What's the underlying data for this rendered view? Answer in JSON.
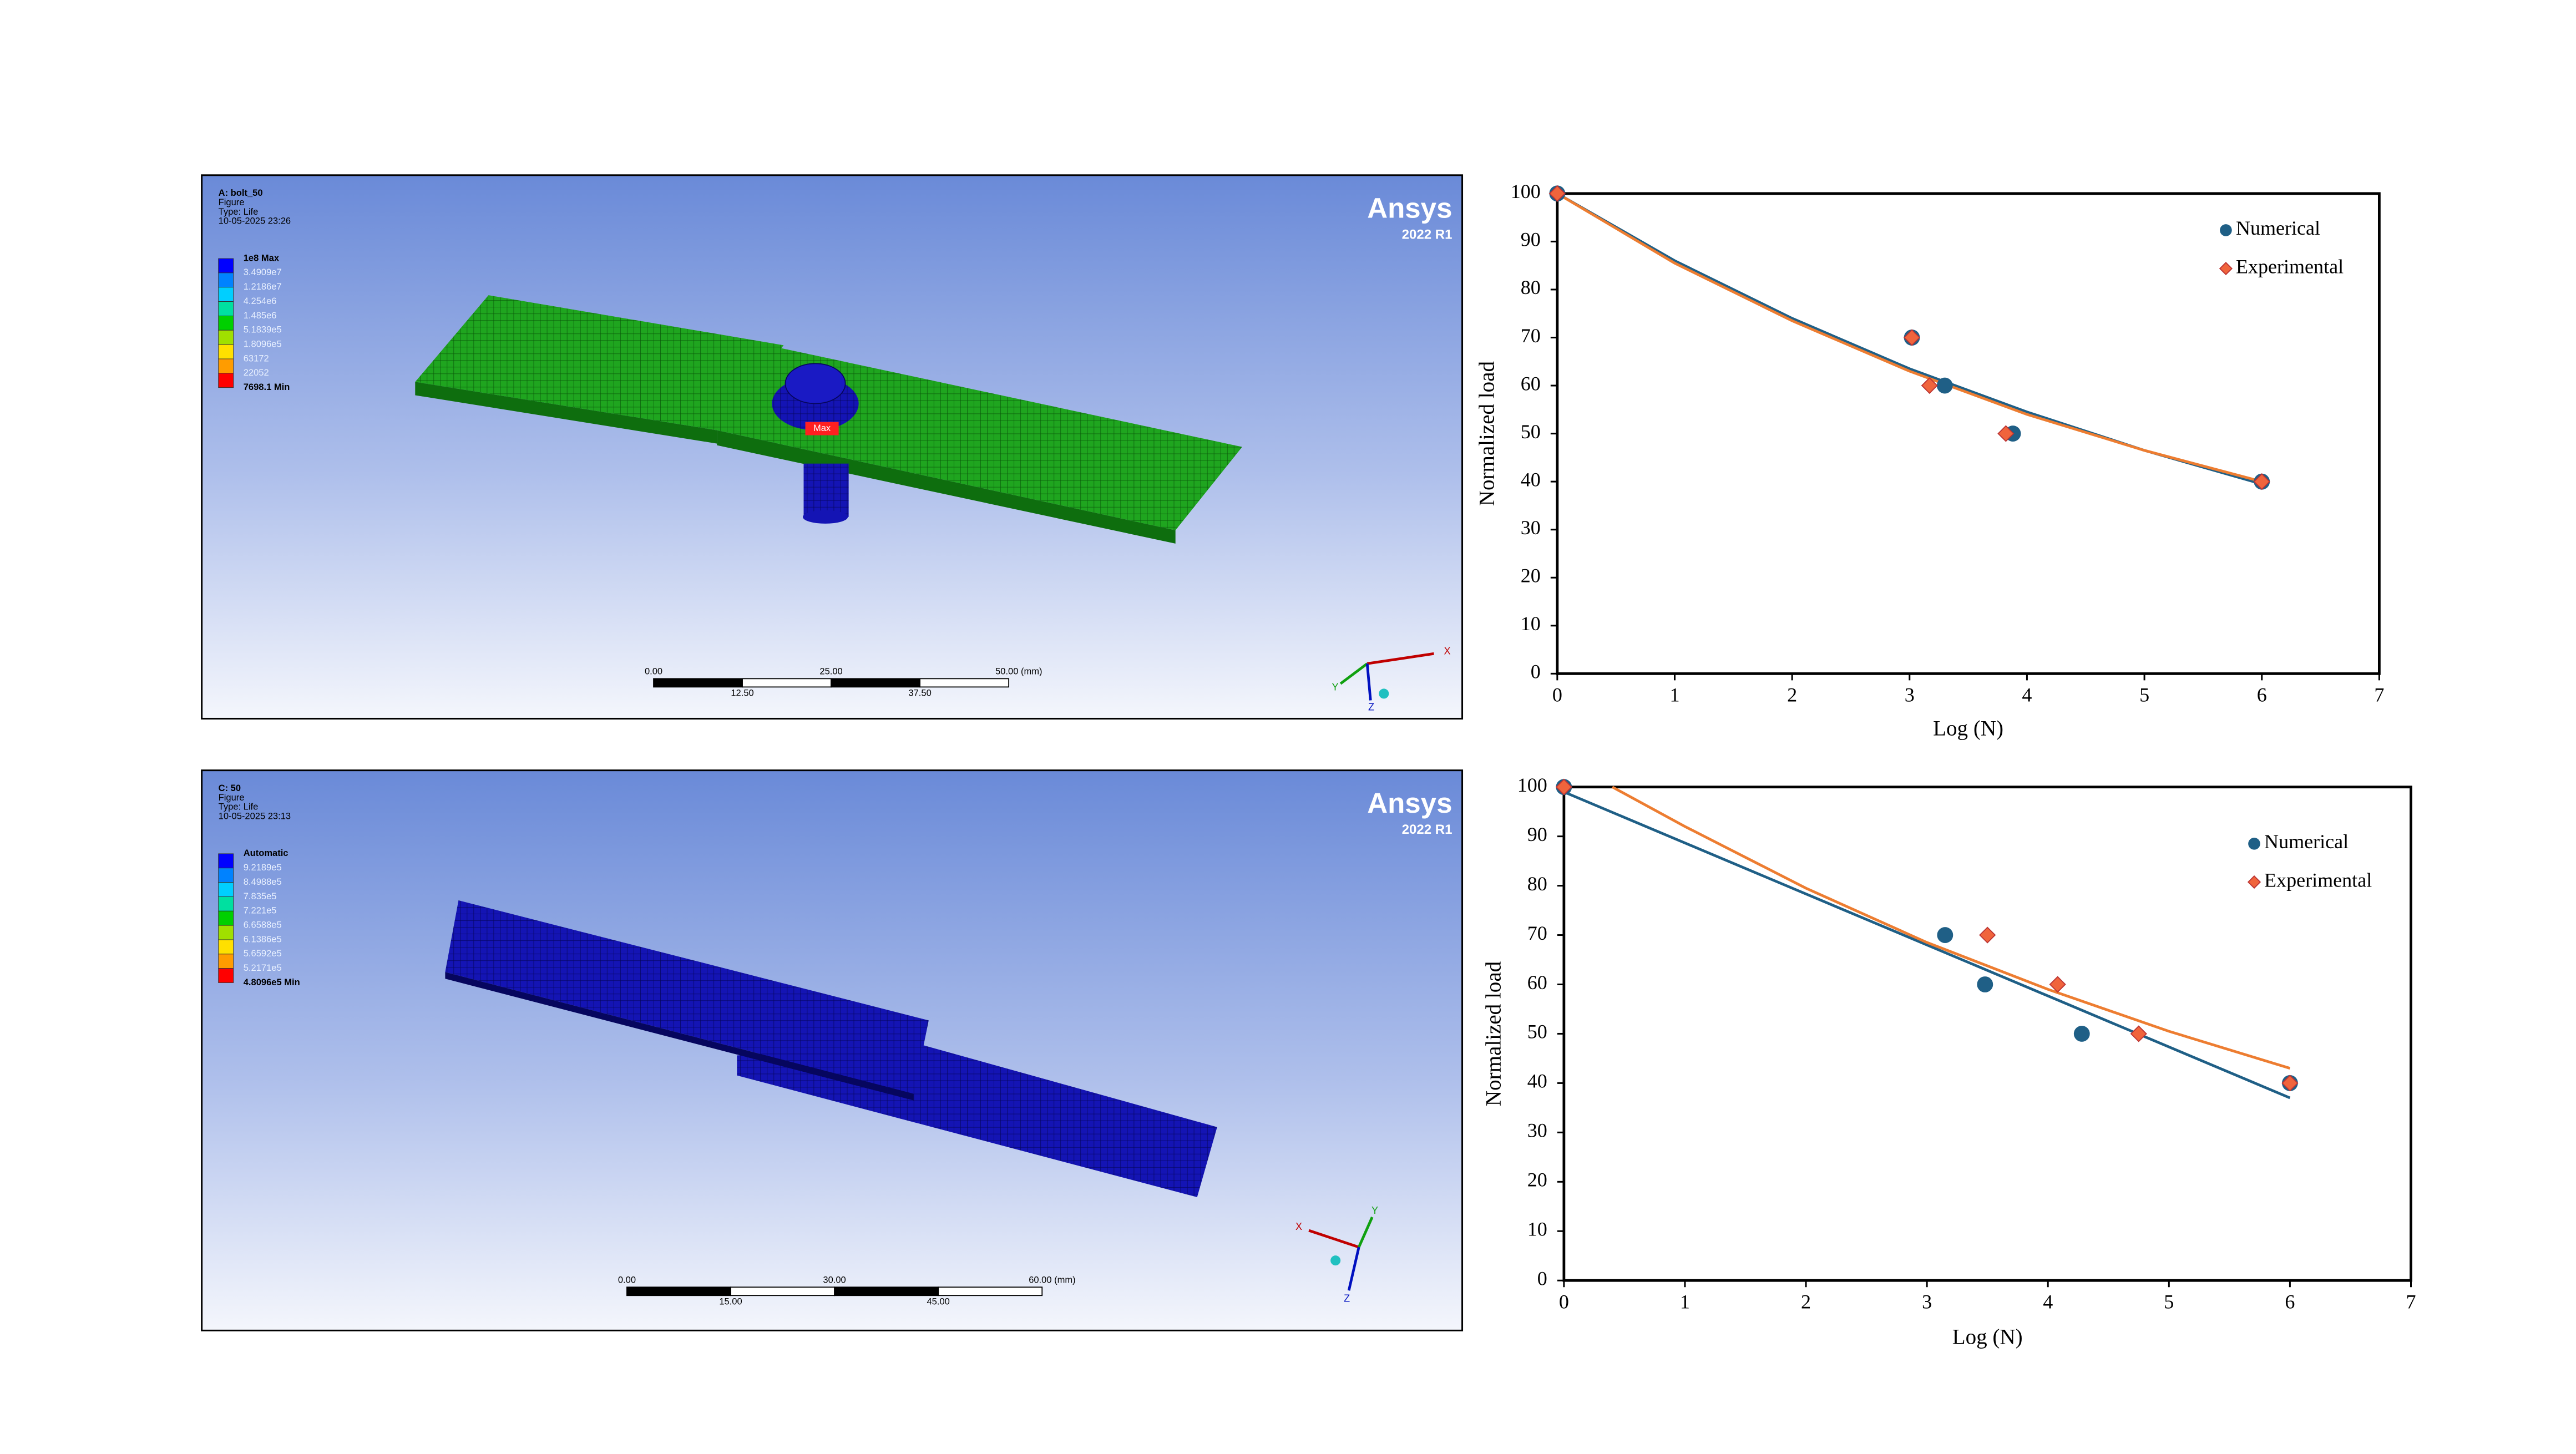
{
  "panels": [
    {
      "header": [
        "A: bolt_50",
        "Figure",
        "Type: Life",
        "10-05-2025 23:26"
      ],
      "legend": [
        "1e8 Max",
        "3.4909e7",
        "1.2186e7",
        "4.254e6",
        "1.485e6",
        "5.1839e5",
        "1.8096e5",
        "63172",
        "22052",
        "7698.1 Min"
      ],
      "brand": "Ansys",
      "version": "2022 R1",
      "scale_top": [
        "0.00",
        "25.00",
        "50.00 (mm)"
      ],
      "scale_bottom": [
        "12.50",
        "37.50"
      ],
      "max_label": "Max",
      "axes": [
        "X",
        "Y",
        "Z"
      ]
    },
    {
      "header": [
        "C: 50",
        "Figure",
        "Type: Life",
        "10-05-2025 23:13"
      ],
      "legend": [
        "Automatic",
        "9.2189e5",
        "8.4988e5",
        "7.835e5",
        "7.221e5",
        "6.6588e5",
        "6.1386e5",
        "5.6592e5",
        "5.2171e5",
        "4.8096e5 Min"
      ],
      "brand": "Ansys",
      "version": "2022 R1",
      "scale_top": [
        "0.00",
        "30.00",
        "60.00 (mm)"
      ],
      "scale_bottom": [
        "15.00",
        "45.00"
      ],
      "axes": [
        "X",
        "Y",
        "Z"
      ]
    }
  ],
  "chart_data": [
    {
      "type": "scatter",
      "xlabel": "Log (N)",
      "ylabel": "Normalized load",
      "xlim": [
        0,
        7
      ],
      "ylim": [
        0,
        100
      ],
      "xticks": [
        0,
        1,
        2,
        3,
        4,
        5,
        6,
        7
      ],
      "yticks": [
        0,
        10,
        20,
        30,
        40,
        50,
        60,
        70,
        80,
        90,
        100
      ],
      "legend": "upper right",
      "series": [
        {
          "name": "Numerical",
          "color": "#1f5f86",
          "marker": "circle",
          "x": [
            0,
            3.02,
            3.3,
            3.88,
            6
          ],
          "values": [
            100,
            70,
            60,
            50,
            40
          ]
        },
        {
          "name": "Experimental",
          "color": "#f0643c",
          "marker": "diamond",
          "x": [
            0,
            3.02,
            3.17,
            3.82,
            6
          ],
          "values": [
            100,
            70,
            60,
            50,
            40
          ]
        }
      ],
      "trendlines": [
        {
          "color": "#1f5f86",
          "x": [
            0,
            1,
            2,
            3,
            4,
            5,
            6
          ],
          "values": [
            100,
            86,
            74,
            63.5,
            54.5,
            46.5,
            39.5
          ]
        },
        {
          "color": "#ed7d31",
          "x": [
            0,
            1,
            2,
            3,
            4,
            5,
            6
          ],
          "values": [
            100,
            85.5,
            73.5,
            63,
            54,
            46.5,
            40
          ]
        }
      ]
    },
    {
      "type": "scatter",
      "xlabel": "Log (N)",
      "ylabel": "Normalized load",
      "xlim": [
        0,
        7
      ],
      "ylim": [
        0,
        100
      ],
      "xticks": [
        0,
        1,
        2,
        3,
        4,
        5,
        6,
        7
      ],
      "yticks": [
        0,
        10,
        20,
        30,
        40,
        50,
        60,
        70,
        80,
        90,
        100
      ],
      "legend": "upper right",
      "series": [
        {
          "name": "Numerical",
          "color": "#1f5f86",
          "marker": "circle",
          "x": [
            0,
            3.15,
            3.48,
            4.28,
            6
          ],
          "values": [
            100,
            70,
            60,
            50,
            40
          ]
        },
        {
          "name": "Experimental",
          "color": "#f0643c",
          "marker": "diamond",
          "x": [
            0,
            3.5,
            4.08,
            4.75,
            6
          ],
          "values": [
            100,
            70,
            60,
            50,
            40
          ]
        }
      ],
      "trendlines": [
        {
          "color": "#1f5f86",
          "x": [
            0,
            6
          ],
          "values": [
            99,
            37
          ]
        },
        {
          "color": "#ed7d31",
          "x": [
            0.4,
            1,
            2,
            3,
            4,
            5,
            6
          ],
          "values": [
            100,
            92,
            79.5,
            68.5,
            59,
            50.5,
            43
          ]
        }
      ]
    }
  ]
}
